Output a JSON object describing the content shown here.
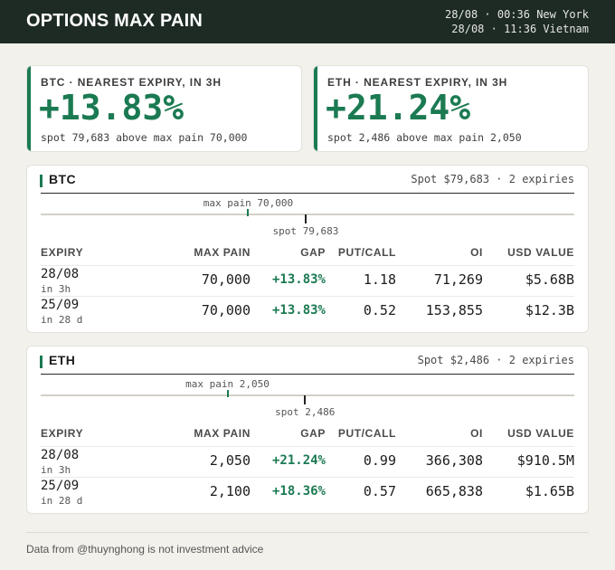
{
  "header": {
    "title": "OPTIONS MAX PAIN",
    "time_ny": "28/08 · 00:36 New York",
    "time_vn": "28/08 · 11:36 Vietnam"
  },
  "colors": {
    "accent_green": "#1b7a52",
    "header_bg": "#1d2b24"
  },
  "summary": [
    {
      "label": "BTC · NEAREST EXPIRY, IN 3H",
      "pct": "+13.83%",
      "desc": "spot 79,683 above max pain 70,000"
    },
    {
      "label": "ETH · NEAREST EXPIRY, IN 3H",
      "pct": "+21.24%",
      "desc": "spot 2,486 above max pain 2,050"
    }
  ],
  "panels": [
    {
      "name": "BTC",
      "meta": "Spot $79,683 · 2 expiries",
      "scale": {
        "min": 35000,
        "max": 125000,
        "max_pain": 70000,
        "spot": 79683,
        "max_pain_label": "max pain 70,000",
        "spot_label": "spot 79,683"
      },
      "columns": [
        "EXPIRY",
        "MAX PAIN",
        "GAP",
        "PUT/CALL",
        "OI",
        "USD VALUE"
      ],
      "rows": [
        {
          "date": "28/08",
          "sub": "in 3h",
          "max_pain": "70,000",
          "gap": "+13.83%",
          "put_call": "1.18",
          "oi": "71,269",
          "usd": "$5.68B"
        },
        {
          "date": "25/09",
          "sub": "in 28 d",
          "max_pain": "70,000",
          "gap": "+13.83%",
          "put_call": "0.52",
          "oi": "153,855",
          "usd": "$12.3B"
        }
      ]
    },
    {
      "name": "ETH",
      "meta": "Spot $2,486 · 2 expiries",
      "scale": {
        "min": 1000,
        "max": 4000,
        "max_pain": 2050,
        "spot": 2486,
        "max_pain_label": "max pain 2,050",
        "spot_label": "spot 2,486"
      },
      "columns": [
        "EXPIRY",
        "MAX PAIN",
        "GAP",
        "PUT/CALL",
        "OI",
        "USD VALUE"
      ],
      "rows": [
        {
          "date": "28/08",
          "sub": "in 3h",
          "max_pain": "2,050",
          "gap": "+21.24%",
          "put_call": "0.99",
          "oi": "366,308",
          "usd": "$910.5M"
        },
        {
          "date": "25/09",
          "sub": "in 28 d",
          "max_pain": "2,100",
          "gap": "+18.36%",
          "put_call": "0.57",
          "oi": "665,838",
          "usd": "$1.65B"
        }
      ]
    }
  ],
  "footer": "Data from @thuynghong is not investment advice"
}
